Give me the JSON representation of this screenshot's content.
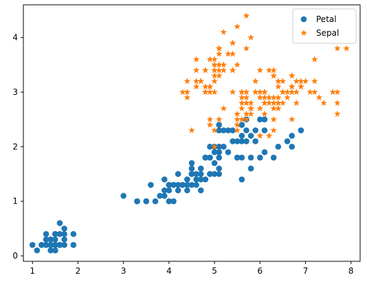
{
  "chart_data": {
    "type": "scatter",
    "title": "",
    "xlabel": "",
    "ylabel": "",
    "xlim": [
      0.8,
      8.2
    ],
    "ylim": [
      -0.1,
      4.6
    ],
    "xticks": [
      1,
      2,
      3,
      4,
      5,
      6,
      7,
      8
    ],
    "yticks": [
      0,
      1,
      2,
      3,
      4
    ],
    "grid": false,
    "legend": "top-right",
    "series": [
      {
        "name": "Petal",
        "marker": "circle",
        "color": "#1f77b4",
        "points": [
          [
            1.4,
            0.2
          ],
          [
            1.4,
            0.2
          ],
          [
            1.3,
            0.2
          ],
          [
            1.5,
            0.2
          ],
          [
            1.4,
            0.2
          ],
          [
            1.7,
            0.4
          ],
          [
            1.4,
            0.3
          ],
          [
            1.5,
            0.2
          ],
          [
            1.4,
            0.2
          ],
          [
            1.5,
            0.1
          ],
          [
            1.5,
            0.2
          ],
          [
            1.6,
            0.2
          ],
          [
            1.4,
            0.1
          ],
          [
            1.1,
            0.1
          ],
          [
            1.2,
            0.2
          ],
          [
            1.5,
            0.4
          ],
          [
            1.3,
            0.4
          ],
          [
            1.4,
            0.3
          ],
          [
            1.7,
            0.3
          ],
          [
            1.5,
            0.3
          ],
          [
            1.7,
            0.2
          ],
          [
            1.5,
            0.4
          ],
          [
            1.0,
            0.2
          ],
          [
            1.7,
            0.5
          ],
          [
            1.9,
            0.2
          ],
          [
            1.6,
            0.2
          ],
          [
            1.6,
            0.4
          ],
          [
            1.5,
            0.2
          ],
          [
            1.4,
            0.2
          ],
          [
            1.6,
            0.2
          ],
          [
            1.6,
            0.2
          ],
          [
            1.5,
            0.4
          ],
          [
            1.5,
            0.1
          ],
          [
            1.4,
            0.2
          ],
          [
            1.5,
            0.2
          ],
          [
            1.2,
            0.2
          ],
          [
            1.3,
            0.2
          ],
          [
            1.4,
            0.1
          ],
          [
            1.3,
            0.2
          ],
          [
            1.5,
            0.2
          ],
          [
            1.3,
            0.3
          ],
          [
            1.3,
            0.3
          ],
          [
            1.3,
            0.2
          ],
          [
            1.6,
            0.6
          ],
          [
            1.9,
            0.4
          ],
          [
            1.4,
            0.3
          ],
          [
            1.6,
            0.2
          ],
          [
            1.4,
            0.2
          ],
          [
            1.5,
            0.2
          ],
          [
            1.4,
            0.2
          ],
          [
            4.7,
            1.4
          ],
          [
            4.5,
            1.5
          ],
          [
            4.9,
            1.5
          ],
          [
            4.0,
            1.3
          ],
          [
            4.6,
            1.5
          ],
          [
            4.5,
            1.3
          ],
          [
            4.7,
            1.6
          ],
          [
            3.3,
            1.0
          ],
          [
            4.6,
            1.3
          ],
          [
            3.9,
            1.4
          ],
          [
            3.5,
            1.0
          ],
          [
            4.2,
            1.5
          ],
          [
            4.0,
            1.0
          ],
          [
            4.7,
            1.4
          ],
          [
            3.6,
            1.3
          ],
          [
            4.4,
            1.4
          ],
          [
            4.5,
            1.5
          ],
          [
            4.1,
            1.0
          ],
          [
            4.5,
            1.5
          ],
          [
            3.9,
            1.1
          ],
          [
            4.8,
            1.8
          ],
          [
            4.0,
            1.3
          ],
          [
            4.9,
            1.5
          ],
          [
            4.7,
            1.2
          ],
          [
            4.3,
            1.3
          ],
          [
            4.4,
            1.4
          ],
          [
            4.8,
            1.4
          ],
          [
            5.0,
            1.7
          ],
          [
            4.5,
            1.5
          ],
          [
            3.5,
            1.0
          ],
          [
            3.8,
            1.1
          ],
          [
            3.7,
            1.0
          ],
          [
            3.9,
            1.2
          ],
          [
            5.1,
            1.6
          ],
          [
            4.5,
            1.5
          ],
          [
            4.5,
            1.6
          ],
          [
            4.7,
            1.5
          ],
          [
            4.4,
            1.3
          ],
          [
            4.1,
            1.3
          ],
          [
            4.0,
            1.3
          ],
          [
            4.4,
            1.2
          ],
          [
            4.6,
            1.4
          ],
          [
            4.0,
            1.2
          ],
          [
            3.3,
            1.0
          ],
          [
            4.2,
            1.3
          ],
          [
            4.2,
            1.2
          ],
          [
            4.2,
            1.3
          ],
          [
            4.3,
            1.3
          ],
          [
            3.0,
            1.1
          ],
          [
            4.1,
            1.3
          ],
          [
            6.0,
            2.5
          ],
          [
            5.1,
            1.9
          ],
          [
            5.9,
            2.1
          ],
          [
            5.6,
            1.8
          ],
          [
            5.8,
            2.2
          ],
          [
            6.6,
            2.1
          ],
          [
            4.5,
            1.7
          ],
          [
            6.3,
            1.8
          ],
          [
            5.8,
            1.8
          ],
          [
            6.1,
            2.5
          ],
          [
            5.1,
            2.0
          ],
          [
            5.3,
            1.9
          ],
          [
            5.5,
            2.1
          ],
          [
            5.0,
            2.0
          ],
          [
            5.1,
            2.4
          ],
          [
            5.3,
            2.3
          ],
          [
            5.5,
            1.8
          ],
          [
            6.7,
            2.2
          ],
          [
            6.9,
            2.3
          ],
          [
            5.0,
            1.5
          ],
          [
            5.7,
            2.3
          ],
          [
            4.9,
            2.0
          ],
          [
            6.7,
            2.0
          ],
          [
            4.9,
            1.8
          ],
          [
            5.7,
            2.1
          ],
          [
            6.0,
            1.8
          ],
          [
            4.8,
            1.8
          ],
          [
            4.9,
            1.8
          ],
          [
            5.6,
            2.1
          ],
          [
            5.8,
            1.6
          ],
          [
            6.1,
            1.9
          ],
          [
            6.4,
            2.0
          ],
          [
            5.6,
            2.2
          ],
          [
            5.1,
            1.5
          ],
          [
            5.6,
            1.4
          ],
          [
            6.1,
            2.3
          ],
          [
            5.6,
            2.4
          ],
          [
            5.5,
            1.8
          ],
          [
            4.8,
            1.8
          ],
          [
            5.4,
            2.1
          ],
          [
            5.6,
            2.4
          ],
          [
            5.1,
            2.3
          ],
          [
            5.1,
            1.9
          ],
          [
            5.9,
            2.3
          ],
          [
            5.7,
            2.5
          ],
          [
            5.2,
            2.3
          ],
          [
            5.0,
            1.9
          ],
          [
            5.2,
            2.0
          ],
          [
            5.4,
            2.3
          ],
          [
            5.1,
            1.8
          ]
        ]
      },
      {
        "name": "Sepal",
        "marker": "star",
        "color": "#ff7f0e",
        "points": [
          [
            5.1,
            3.5
          ],
          [
            4.9,
            3.0
          ],
          [
            4.7,
            3.2
          ],
          [
            4.6,
            3.1
          ],
          [
            5.0,
            3.6
          ],
          [
            5.4,
            3.9
          ],
          [
            4.6,
            3.4
          ],
          [
            5.0,
            3.4
          ],
          [
            4.4,
            2.9
          ],
          [
            4.9,
            3.1
          ],
          [
            5.4,
            3.7
          ],
          [
            4.8,
            3.4
          ],
          [
            4.8,
            3.0
          ],
          [
            4.3,
            3.0
          ],
          [
            5.8,
            4.0
          ],
          [
            5.7,
            4.4
          ],
          [
            5.4,
            3.9
          ],
          [
            5.1,
            3.5
          ],
          [
            5.7,
            3.8
          ],
          [
            5.1,
            3.8
          ],
          [
            5.4,
            3.4
          ],
          [
            5.1,
            3.7
          ],
          [
            4.6,
            3.6
          ],
          [
            5.1,
            3.3
          ],
          [
            4.8,
            3.4
          ],
          [
            5.0,
            3.0
          ],
          [
            5.0,
            3.4
          ],
          [
            5.2,
            3.5
          ],
          [
            5.2,
            3.4
          ],
          [
            4.7,
            3.2
          ],
          [
            4.8,
            3.1
          ],
          [
            5.4,
            3.4
          ],
          [
            5.2,
            4.1
          ],
          [
            5.5,
            4.2
          ],
          [
            4.9,
            3.1
          ],
          [
            5.0,
            3.2
          ],
          [
            5.5,
            3.5
          ],
          [
            4.9,
            3.6
          ],
          [
            4.4,
            3.0
          ],
          [
            5.1,
            3.4
          ],
          [
            5.0,
            3.5
          ],
          [
            4.5,
            2.3
          ],
          [
            4.4,
            3.2
          ],
          [
            5.0,
            3.5
          ],
          [
            5.1,
            3.8
          ],
          [
            4.8,
            3.0
          ],
          [
            5.1,
            3.8
          ],
          [
            4.6,
            3.2
          ],
          [
            5.3,
            3.7
          ],
          [
            5.0,
            3.3
          ],
          [
            7.0,
            3.2
          ],
          [
            6.4,
            3.2
          ],
          [
            6.9,
            3.1
          ],
          [
            5.5,
            2.3
          ],
          [
            6.5,
            2.8
          ],
          [
            5.7,
            2.8
          ],
          [
            6.3,
            3.3
          ],
          [
            4.9,
            2.4
          ],
          [
            6.6,
            2.9
          ],
          [
            5.2,
            2.7
          ],
          [
            5.0,
            2.0
          ],
          [
            5.9,
            3.0
          ],
          [
            6.0,
            2.2
          ],
          [
            6.1,
            2.9
          ],
          [
            5.6,
            2.9
          ],
          [
            6.7,
            3.1
          ],
          [
            5.6,
            3.0
          ],
          [
            5.8,
            2.7
          ],
          [
            6.2,
            2.2
          ],
          [
            5.6,
            2.5
          ],
          [
            5.9,
            3.2
          ],
          [
            6.1,
            2.8
          ],
          [
            6.3,
            2.5
          ],
          [
            6.1,
            2.8
          ],
          [
            6.4,
            2.9
          ],
          [
            6.6,
            3.0
          ],
          [
            6.8,
            2.8
          ],
          [
            6.7,
            3.0
          ],
          [
            6.0,
            2.9
          ],
          [
            5.7,
            2.6
          ],
          [
            5.5,
            2.4
          ],
          [
            5.5,
            2.4
          ],
          [
            5.8,
            2.7
          ],
          [
            6.0,
            2.7
          ],
          [
            5.4,
            3.0
          ],
          [
            6.0,
            3.4
          ],
          [
            6.7,
            3.1
          ],
          [
            6.3,
            2.3
          ],
          [
            5.6,
            3.0
          ],
          [
            5.5,
            2.5
          ],
          [
            5.5,
            2.6
          ],
          [
            6.1,
            3.0
          ],
          [
            5.8,
            2.6
          ],
          [
            5.0,
            2.3
          ],
          [
            5.6,
            2.7
          ],
          [
            5.7,
            3.0
          ],
          [
            5.7,
            2.9
          ],
          [
            6.2,
            2.9
          ],
          [
            5.1,
            2.5
          ],
          [
            5.7,
            2.8
          ],
          [
            6.3,
            3.3
          ],
          [
            5.8,
            2.7
          ],
          [
            7.1,
            3.0
          ],
          [
            6.3,
            2.9
          ],
          [
            6.5,
            3.0
          ],
          [
            7.6,
            3.0
          ],
          [
            4.9,
            2.5
          ],
          [
            7.3,
            2.9
          ],
          [
            6.7,
            2.5
          ],
          [
            7.2,
            3.6
          ],
          [
            6.5,
            3.2
          ],
          [
            6.4,
            2.7
          ],
          [
            6.8,
            3.0
          ],
          [
            5.7,
            2.5
          ],
          [
            5.8,
            2.8
          ],
          [
            6.4,
            3.2
          ],
          [
            6.5,
            3.0
          ],
          [
            7.7,
            3.8
          ],
          [
            7.7,
            2.6
          ],
          [
            6.0,
            2.2
          ],
          [
            6.9,
            3.2
          ],
          [
            5.6,
            2.8
          ],
          [
            7.7,
            2.8
          ],
          [
            6.3,
            2.7
          ],
          [
            6.7,
            3.3
          ],
          [
            7.2,
            3.2
          ],
          [
            6.2,
            2.8
          ],
          [
            6.1,
            3.0
          ],
          [
            6.4,
            2.8
          ],
          [
            7.2,
            3.0
          ],
          [
            7.4,
            2.8
          ],
          [
            7.9,
            3.8
          ],
          [
            6.4,
            2.8
          ],
          [
            6.3,
            2.8
          ],
          [
            6.1,
            2.6
          ],
          [
            7.7,
            3.0
          ],
          [
            6.3,
            3.4
          ],
          [
            6.4,
            3.1
          ],
          [
            6.0,
            3.0
          ],
          [
            6.9,
            3.1
          ],
          [
            6.7,
            3.1
          ],
          [
            6.9,
            3.1
          ],
          [
            5.8,
            2.7
          ],
          [
            6.8,
            3.2
          ],
          [
            6.7,
            3.3
          ],
          [
            6.7,
            3.0
          ],
          [
            6.3,
            2.5
          ],
          [
            6.5,
            3.0
          ],
          [
            6.2,
            3.4
          ],
          [
            5.9,
            3.0
          ]
        ]
      }
    ]
  }
}
